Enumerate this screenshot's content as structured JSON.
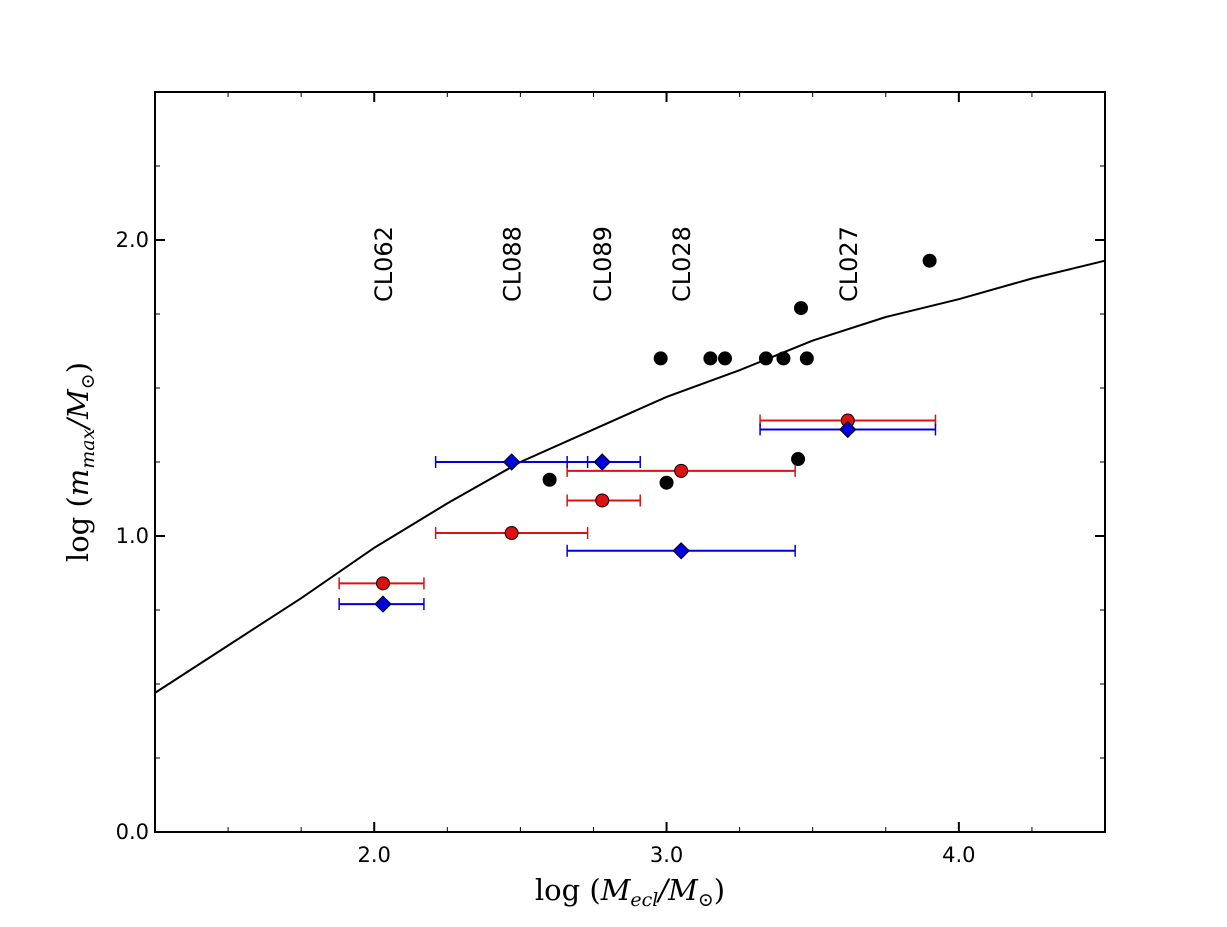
{
  "chart_data": {
    "type": "scatter",
    "title": "",
    "xlabel": {
      "prefix": "log (",
      "main": "M",
      "sub": "ecl",
      "slash": "/M",
      "sun": "⊙",
      "suffix": ")"
    },
    "ylabel": {
      "prefix": "log (",
      "main": "m",
      "sub": "max",
      "slash": "/M",
      "sun": "⊙",
      "suffix": ")"
    },
    "xlim": [
      1.25,
      4.5
    ],
    "ylim": [
      0.0,
      2.5
    ],
    "x_ticks": [
      {
        "value": 2.0,
        "label": "2.0"
      },
      {
        "value": 3.0,
        "label": "3.0"
      },
      {
        "value": 4.0,
        "label": "4.0"
      }
    ],
    "y_ticks": [
      {
        "value": 0.0,
        "label": "0.0"
      },
      {
        "value": 1.0,
        "label": "1.0"
      },
      {
        "value": 2.0,
        "label": "2.0"
      }
    ],
    "x_minor_step": 0.25,
    "y_minor_step": 0.25,
    "grid": false,
    "colors": {
      "red": "#dd1111",
      "blue": "#0000dd",
      "black": "#000000",
      "curve": "#000000"
    },
    "cluster_labels": [
      {
        "text": "CL062",
        "x": 2.03
      },
      {
        "text": "CL088",
        "x": 2.47
      },
      {
        "text": "CL089",
        "x": 2.78
      },
      {
        "text": "CL028",
        "x": 3.05
      },
      {
        "text": "CL027",
        "x": 3.62
      }
    ],
    "series": [
      {
        "name": "relation",
        "kind": "line",
        "x": [
          1.25,
          1.5,
          1.75,
          2.0,
          2.25,
          2.5,
          2.75,
          3.0,
          3.25,
          3.5,
          3.75,
          4.0,
          4.25,
          4.5
        ],
        "y": [
          0.47,
          0.63,
          0.79,
          0.96,
          1.11,
          1.25,
          1.36,
          1.47,
          1.56,
          1.66,
          1.74,
          1.8,
          1.87,
          1.93
        ]
      },
      {
        "name": "black_points",
        "kind": "circle",
        "x": [
          2.6,
          2.98,
          3.0,
          3.15,
          3.2,
          3.34,
          3.4,
          3.45,
          3.46,
          3.48,
          3.9
        ],
        "y": [
          1.19,
          1.6,
          1.18,
          1.6,
          1.6,
          1.6,
          1.6,
          1.26,
          1.77,
          1.6,
          1.93
        ]
      },
      {
        "name": "red_points",
        "kind": "circle",
        "x": [
          2.03,
          2.47,
          2.78,
          3.05,
          3.62
        ],
        "y": [
          0.84,
          1.01,
          1.12,
          1.22,
          1.39
        ],
        "xerr_low": [
          1.88,
          2.21,
          2.66,
          2.66,
          3.32
        ],
        "xerr_high": [
          2.17,
          2.73,
          2.91,
          3.44,
          3.92
        ]
      },
      {
        "name": "blue_points",
        "kind": "diamond",
        "x": [
          2.03,
          2.47,
          2.78,
          3.05,
          3.62
        ],
        "y": [
          0.77,
          1.25,
          1.25,
          0.95,
          1.36
        ],
        "xerr_low": [
          1.88,
          2.21,
          2.66,
          2.66,
          3.32
        ],
        "xerr_high": [
          2.17,
          2.73,
          2.91,
          3.44,
          3.92
        ]
      }
    ]
  }
}
